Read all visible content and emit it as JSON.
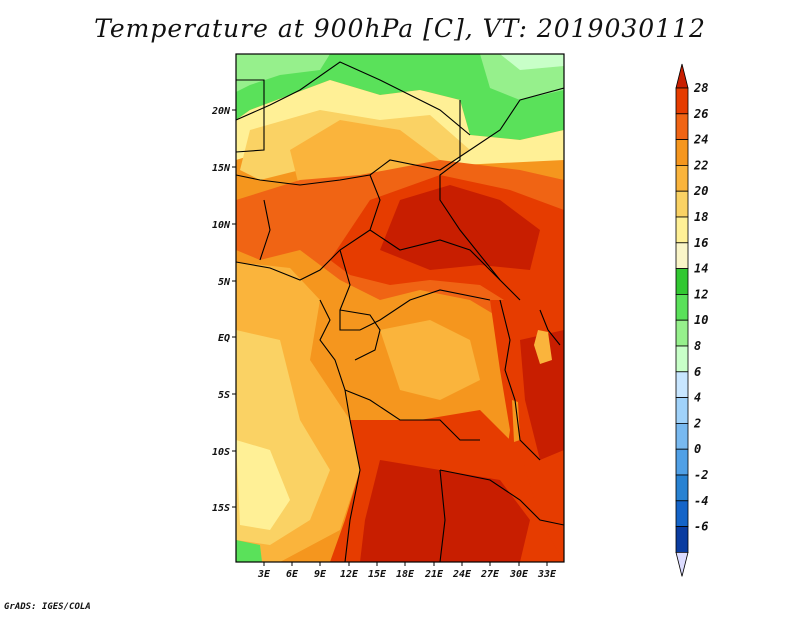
{
  "title": "Temperature at 900hPa [C], VT: 2019030112",
  "credit": "GrADS: IGES/COLA",
  "map": {
    "lat_labels": [
      "20N",
      "15N",
      "10N",
      "5N",
      "EQ",
      "5S",
      "10S",
      "15S"
    ],
    "lon_labels": [
      "3E",
      "6E",
      "9E",
      "12E",
      "15E",
      "18E",
      "21E",
      "24E",
      "27E",
      "30E",
      "33E"
    ]
  },
  "colorbar": {
    "labels": [
      "28",
      "26",
      "24",
      "22",
      "20",
      "18",
      "16",
      "14",
      "12",
      "10",
      "8",
      "6",
      "4",
      "2",
      "0",
      "-2",
      "-4",
      "-6"
    ],
    "colors": [
      "#c81e00",
      "#e63c00",
      "#f06414",
      "#f5961e",
      "#fab43c",
      "#fad264",
      "#fff096",
      "#faf5c8",
      "#32c832",
      "#5ae15a",
      "#96f08c",
      "#c8ffc8",
      "#c8e6ff",
      "#a0d2fa",
      "#78b9f0",
      "#50a0e6",
      "#2882d2",
      "#1464c8",
      "#0a3ca0",
      "#000064"
    ]
  }
}
